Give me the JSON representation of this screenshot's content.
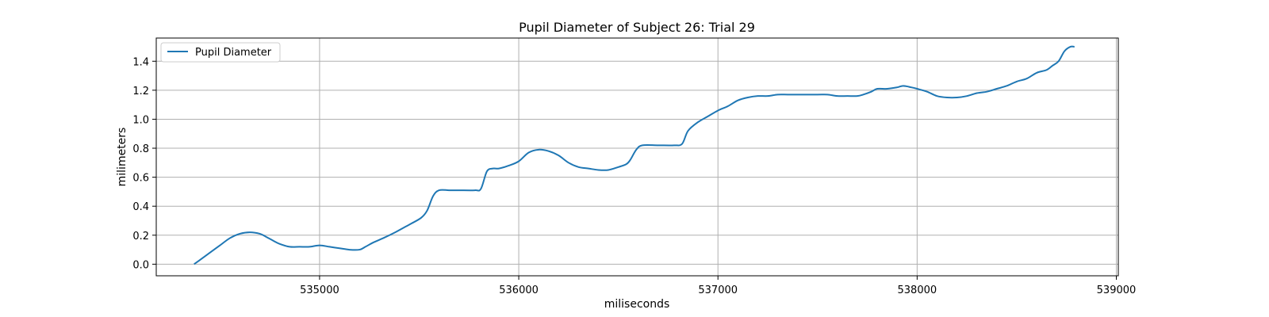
{
  "chart_data": {
    "type": "line",
    "title": "Pupil Diameter of Subject 26: Trial 29",
    "xlabel": "miliseconds",
    "ylabel": "milimeters",
    "xlim": [
      534180,
      539010
    ],
    "ylim": [
      -0.08,
      1.56
    ],
    "xticks": [
      535000,
      536000,
      537000,
      538000,
      539000
    ],
    "xtick_labels": [
      "535000",
      "536000",
      "537000",
      "538000",
      "539000"
    ],
    "yticks": [
      0.0,
      0.2,
      0.4,
      0.6,
      0.8,
      1.0,
      1.2,
      1.4
    ],
    "ytick_labels": [
      "0.0",
      "0.2",
      "0.4",
      "0.6",
      "0.8",
      "1.0",
      "1.2",
      "1.4"
    ],
    "grid": true,
    "legend_position": "upper-left",
    "line_color": "#1f77b4",
    "series": [
      {
        "name": "Pupil Diameter",
        "x": [
          534370,
          534410,
          534450,
          534500,
          534550,
          534600,
          534650,
          534700,
          534730,
          534770,
          534800,
          534850,
          534900,
          534950,
          535000,
          535050,
          535100,
          535150,
          535200,
          535230,
          535270,
          535320,
          535380,
          535420,
          535460,
          535510,
          535540,
          535570,
          535600,
          535650,
          535700,
          535780,
          535810,
          535840,
          535870,
          535900,
          535950,
          536000,
          536050,
          536100,
          536150,
          536200,
          536250,
          536300,
          536350,
          536400,
          536450,
          536500,
          536540,
          536560,
          536590,
          536620,
          536700,
          536780,
          536820,
          536850,
          536900,
          536950,
          537000,
          537050,
          537100,
          537150,
          537200,
          537250,
          537300,
          537350,
          537400,
          537500,
          537550,
          537600,
          537650,
          537700,
          537730,
          537770,
          537800,
          537850,
          537900,
          537930,
          537970,
          538000,
          538050,
          538100,
          538150,
          538200,
          538250,
          538300,
          538350,
          538400,
          538450,
          538500,
          538550,
          538600,
          538650,
          538680,
          538710,
          538740,
          538770,
          538790
        ],
        "y": [
          0.0,
          0.04,
          0.08,
          0.13,
          0.18,
          0.21,
          0.22,
          0.21,
          0.19,
          0.16,
          0.14,
          0.12,
          0.12,
          0.12,
          0.13,
          0.12,
          0.11,
          0.1,
          0.1,
          0.12,
          0.15,
          0.18,
          0.22,
          0.25,
          0.28,
          0.32,
          0.37,
          0.47,
          0.51,
          0.51,
          0.51,
          0.51,
          0.52,
          0.64,
          0.66,
          0.66,
          0.68,
          0.71,
          0.77,
          0.79,
          0.78,
          0.75,
          0.7,
          0.67,
          0.66,
          0.65,
          0.65,
          0.67,
          0.69,
          0.72,
          0.79,
          0.82,
          0.82,
          0.82,
          0.83,
          0.92,
          0.98,
          1.02,
          1.06,
          1.09,
          1.13,
          1.15,
          1.16,
          1.16,
          1.17,
          1.17,
          1.17,
          1.17,
          1.17,
          1.16,
          1.16,
          1.16,
          1.17,
          1.19,
          1.21,
          1.21,
          1.22,
          1.23,
          1.22,
          1.21,
          1.19,
          1.16,
          1.15,
          1.15,
          1.16,
          1.18,
          1.19,
          1.21,
          1.23,
          1.26,
          1.28,
          1.32,
          1.34,
          1.37,
          1.4,
          1.47,
          1.5,
          1.5
        ]
      }
    ]
  }
}
